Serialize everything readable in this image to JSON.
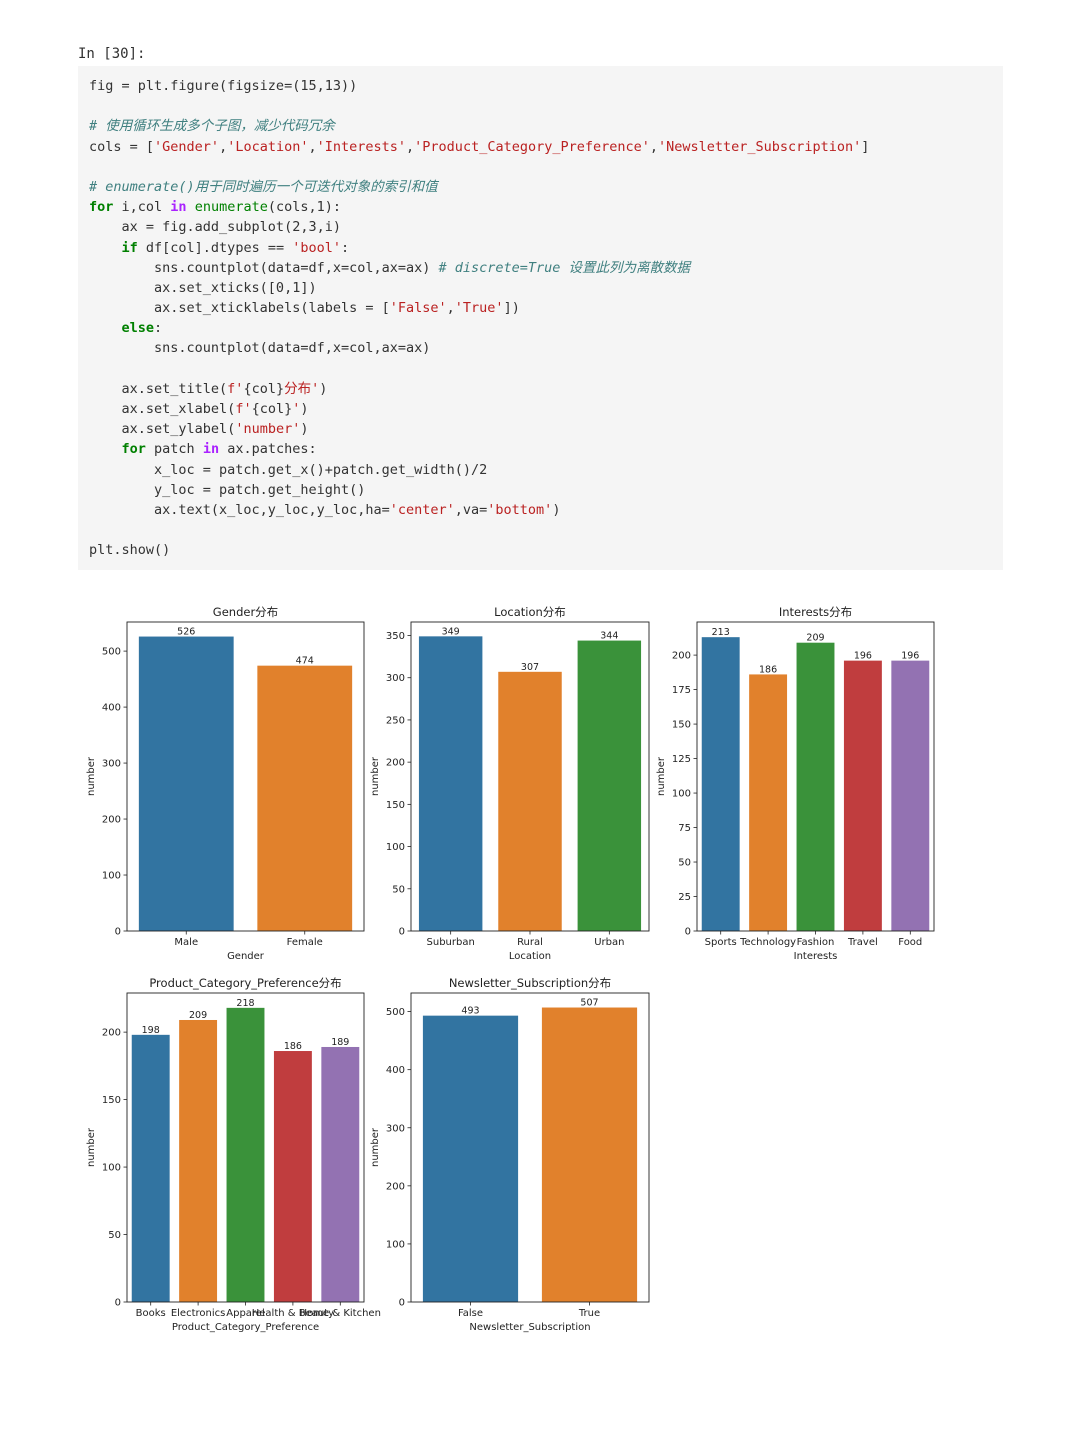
{
  "cell": {
    "prompt": "In [30]:",
    "code_lines": [
      [
        {
          "t": "fig = plt.figure(figsize=(15,13))",
          "c": ""
        }
      ],
      [],
      [
        {
          "t": "# 使用循环生成多个子图，减少代码冗余",
          "c": "cmt"
        }
      ],
      [
        {
          "t": "cols = [",
          "c": ""
        },
        {
          "t": "'Gender'",
          "c": "str"
        },
        {
          "t": ",",
          "c": ""
        },
        {
          "t": "'Location'",
          "c": "str"
        },
        {
          "t": ",",
          "c": ""
        },
        {
          "t": "'Interests'",
          "c": "str"
        },
        {
          "t": ",",
          "c": ""
        },
        {
          "t": "'Product_Category_Preference'",
          "c": "str"
        },
        {
          "t": ",",
          "c": ""
        },
        {
          "t": "'Newsletter_Subscription'",
          "c": "str"
        },
        {
          "t": "]",
          "c": ""
        }
      ],
      [],
      [
        {
          "t": "# enumerate()用于同时遍历一个可迭代对象的索引和值",
          "c": "cmt"
        }
      ],
      [
        {
          "t": "for",
          "c": "kw"
        },
        {
          "t": " i,col ",
          "c": ""
        },
        {
          "t": "in",
          "c": "kw2"
        },
        {
          "t": " ",
          "c": ""
        },
        {
          "t": "enumerate",
          "c": "bi"
        },
        {
          "t": "(cols,1):",
          "c": ""
        }
      ],
      [
        {
          "t": "    ax = fig.add_subplot(2,3,i)",
          "c": ""
        }
      ],
      [
        {
          "t": "    ",
          "c": ""
        },
        {
          "t": "if",
          "c": "kw"
        },
        {
          "t": " df[col].dtypes == ",
          "c": ""
        },
        {
          "t": "'bool'",
          "c": "str"
        },
        {
          "t": ":",
          "c": ""
        }
      ],
      [
        {
          "t": "        sns.countplot(data=df,x=col,ax=ax) ",
          "c": ""
        },
        {
          "t": "# discrete=True 设置此列为离散数据",
          "c": "cmt"
        }
      ],
      [
        {
          "t": "        ax.set_xticks([0,1])",
          "c": ""
        }
      ],
      [
        {
          "t": "        ax.set_xticklabels(labels = [",
          "c": ""
        },
        {
          "t": "'False'",
          "c": "str"
        },
        {
          "t": ",",
          "c": ""
        },
        {
          "t": "'True'",
          "c": "str"
        },
        {
          "t": "])",
          "c": ""
        }
      ],
      [
        {
          "t": "    ",
          "c": ""
        },
        {
          "t": "else",
          "c": "kw"
        },
        {
          "t": ":",
          "c": ""
        }
      ],
      [
        {
          "t": "        sns.countplot(data=df,x=col,ax=ax)",
          "c": ""
        }
      ],
      [],
      [
        {
          "t": "    ax.set_title(",
          "c": ""
        },
        {
          "t": "f'",
          "c": "str"
        },
        {
          "t": "{col}",
          "c": ""
        },
        {
          "t": "分布'",
          "c": "str"
        },
        {
          "t": ")",
          "c": ""
        }
      ],
      [
        {
          "t": "    ax.set_xlabel(",
          "c": ""
        },
        {
          "t": "f'",
          "c": "str"
        },
        {
          "t": "{col}",
          "c": ""
        },
        {
          "t": "'",
          "c": "str"
        },
        {
          "t": ")",
          "c": ""
        }
      ],
      [
        {
          "t": "    ax.set_ylabel(",
          "c": ""
        },
        {
          "t": "'number'",
          "c": "str"
        },
        {
          "t": ")",
          "c": ""
        }
      ],
      [
        {
          "t": "    ",
          "c": ""
        },
        {
          "t": "for",
          "c": "kw"
        },
        {
          "t": " patch ",
          "c": ""
        },
        {
          "t": "in",
          "c": "kw2"
        },
        {
          "t": " ax.patches:",
          "c": ""
        }
      ],
      [
        {
          "t": "        x_loc = patch.get_x()+patch.get_width()/2",
          "c": ""
        }
      ],
      [
        {
          "t": "        y_loc = patch.get_height()",
          "c": ""
        }
      ],
      [
        {
          "t": "        ax.text(x_loc,y_loc,y_loc,ha=",
          "c": ""
        },
        {
          "t": "'center'",
          "c": "str"
        },
        {
          "t": ",va=",
          "c": ""
        },
        {
          "t": "'bottom'",
          "c": "str"
        },
        {
          "t": ")",
          "c": ""
        }
      ],
      [],
      [
        {
          "t": "plt.show()",
          "c": ""
        }
      ]
    ]
  },
  "colors": [
    "#3274a1",
    "#e1812c",
    "#3a923a",
    "#c03d3e",
    "#9372b2"
  ],
  "chart_data": [
    {
      "type": "bar",
      "title": "Gender分布",
      "xlabel": "Gender",
      "ylabel": "number",
      "categories": [
        "Male",
        "Female"
      ],
      "values": [
        526,
        474
      ],
      "ylim": [
        0,
        552
      ],
      "yticks": [
        0,
        100,
        200,
        300,
        400,
        500
      ]
    },
    {
      "type": "bar",
      "title": "Location分布",
      "xlabel": "Location",
      "ylabel": "number",
      "categories": [
        "Suburban",
        "Rural",
        "Urban"
      ],
      "values": [
        349,
        307,
        344
      ],
      "ylim": [
        0,
        366
      ],
      "yticks": [
        0,
        50,
        100,
        150,
        200,
        250,
        300,
        350
      ]
    },
    {
      "type": "bar",
      "title": "Interests分布",
      "xlabel": "Interests",
      "ylabel": "number",
      "categories": [
        "Sports",
        "Technology",
        "Fashion",
        "Travel",
        "Food"
      ],
      "values": [
        213,
        186,
        209,
        196,
        196
      ],
      "ylim": [
        0,
        224
      ],
      "yticks": [
        0,
        25,
        50,
        75,
        100,
        125,
        150,
        175,
        200
      ]
    },
    {
      "type": "bar",
      "title": "Product_Category_Preference分布",
      "xlabel": "Product_Category_Preference",
      "ylabel": "number",
      "categories": [
        "Books",
        "Electronics",
        "Apparel",
        "Health & Beauty",
        "Home & Kitchen"
      ],
      "values": [
        198,
        209,
        218,
        186,
        189
      ],
      "ylim": [
        0,
        229
      ],
      "yticks": [
        0,
        50,
        100,
        150,
        200
      ]
    },
    {
      "type": "bar",
      "title": "Newsletter_Subscription分布",
      "xlabel": "Newsletter_Subscription",
      "ylabel": "number",
      "categories": [
        "False",
        "True"
      ],
      "values": [
        493,
        507
      ],
      "ylim": [
        0,
        532
      ],
      "yticks": [
        0,
        100,
        200,
        300,
        400,
        500
      ]
    }
  ]
}
